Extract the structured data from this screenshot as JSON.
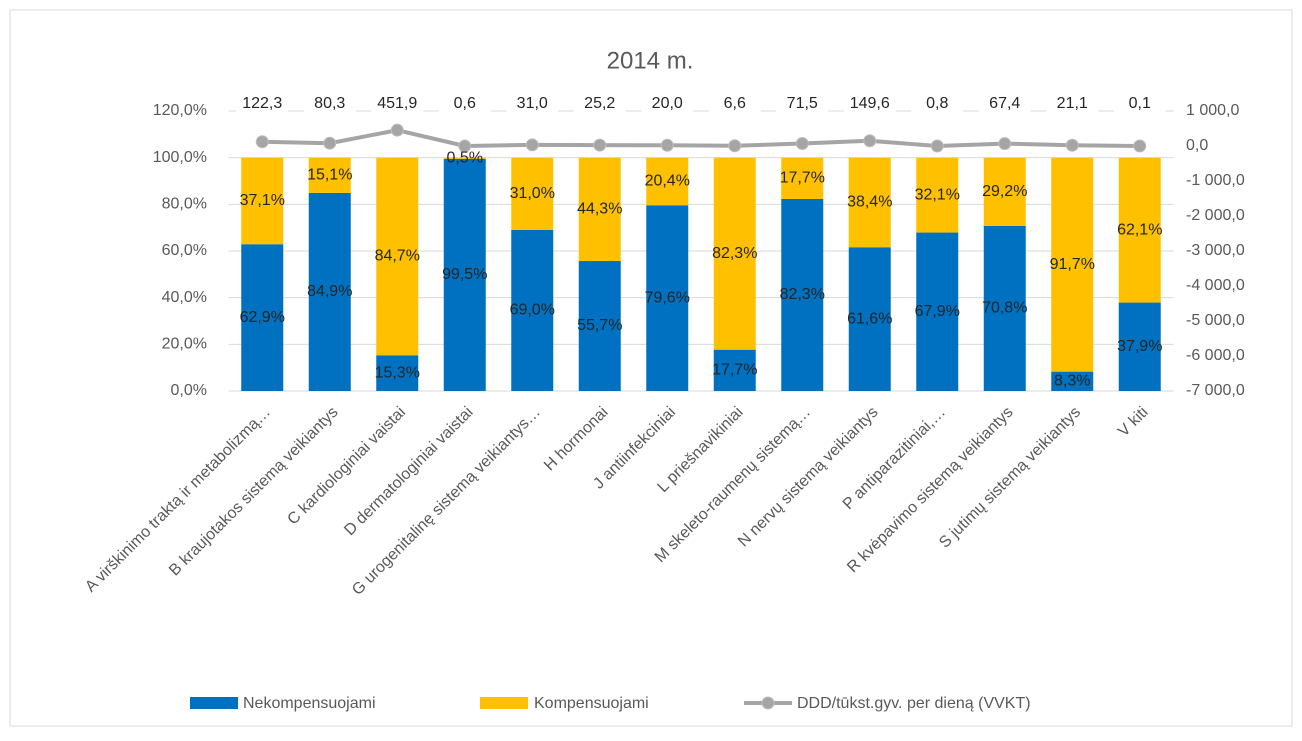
{
  "chart_data": {
    "type": "bar",
    "stacked": true,
    "title": "2014 m.",
    "categories": [
      "A virškinimo traktą ir metabolizmą…",
      "B kraujotakos sistemą veikiantys",
      "C kardiologiniai vaistai",
      "D dermatologiniai vaistai",
      "G urogenitalinę sistemą veikiantys…",
      "H hormonai",
      "J antiinfekciniai",
      "L priešnavikiniai",
      "M skeleto-raumenų sistemą…",
      "N nervų sistemą veikiantys",
      "P antiparazitiniai,…",
      "R kvėpavimo sistemą veikiantys",
      "S jutimų sistemą veikiantys",
      "V kiti"
    ],
    "series": [
      {
        "name": "Nekompensuojami",
        "color": "#0070c0",
        "type": "bar",
        "values": [
          62.9,
          84.9,
          15.3,
          99.5,
          69.0,
          55.7,
          79.6,
          17.7,
          82.3,
          61.6,
          67.9,
          70.8,
          8.3,
          37.9
        ],
        "value_labels": [
          "62,9%",
          "84,9%",
          "15,3%",
          "99,5%",
          "69,0%",
          "55,7%",
          "79,6%",
          "17,7%",
          "82,3%",
          "61,6%",
          "67,9%",
          "70,8%",
          "8,3%",
          "37,9%"
        ]
      },
      {
        "name": "Kompensuojami",
        "color": "#ffc000",
        "type": "bar",
        "values": [
          37.1,
          15.1,
          84.7,
          0.5,
          31.0,
          44.3,
          20.4,
          82.3,
          17.7,
          38.4,
          32.1,
          29.2,
          91.7,
          62.1
        ],
        "value_labels": [
          "37,1%",
          "15,1%",
          "84,7%",
          "0,5%",
          "31,0%",
          "44,3%",
          "20,4%",
          "82,3%",
          "17,7%",
          "38,4%",
          "32,1%",
          "29,2%",
          "91,7%",
          "62,1%"
        ]
      },
      {
        "name": "DDD/tūkst.gyv. per dieną (VVKT)",
        "color": "#a5a5a5",
        "type": "line",
        "axis": "y2",
        "values": [
          122.3,
          80.3,
          451.9,
          0.6,
          31.0,
          25.2,
          20.0,
          6.6,
          71.5,
          149.6,
          0.8,
          67.4,
          21.1,
          0.1
        ],
        "value_labels": [
          "122,3",
          "80,3",
          "451,9",
          "0,6",
          "31,0",
          "25,2",
          "20,0",
          "6,6",
          "71,5",
          "149,6",
          "0,8",
          "67,4",
          "21,1",
          "0,1"
        ]
      }
    ],
    "ylim": [
      0,
      120
    ],
    "yticks": [
      {
        "value": 0,
        "label": "0,0%"
      },
      {
        "value": 20,
        "label": "20,0%"
      },
      {
        "value": 40,
        "label": "40,0%"
      },
      {
        "value": 60,
        "label": "60,0%"
      },
      {
        "value": 80,
        "label": "80,0%"
      },
      {
        "value": 100,
        "label": "100,0%"
      },
      {
        "value": 120,
        "label": "120,0%"
      }
    ],
    "y2lim": [
      -7000,
      1000
    ],
    "y2ticks": [
      {
        "value": -7000,
        "label": "-7 000,0"
      },
      {
        "value": -6000,
        "label": "-6 000,0"
      },
      {
        "value": -5000,
        "label": "-5 000,0"
      },
      {
        "value": -4000,
        "label": "-4 000,0"
      },
      {
        "value": -3000,
        "label": "-3 000,0"
      },
      {
        "value": -2000,
        "label": "-2 000,0"
      },
      {
        "value": -1000,
        "label": "-1 000,0"
      },
      {
        "value": 0,
        "label": "0,0"
      },
      {
        "value": 1000,
        "label": "1 000,0"
      }
    ],
    "grid": true,
    "legend": "bottom"
  }
}
